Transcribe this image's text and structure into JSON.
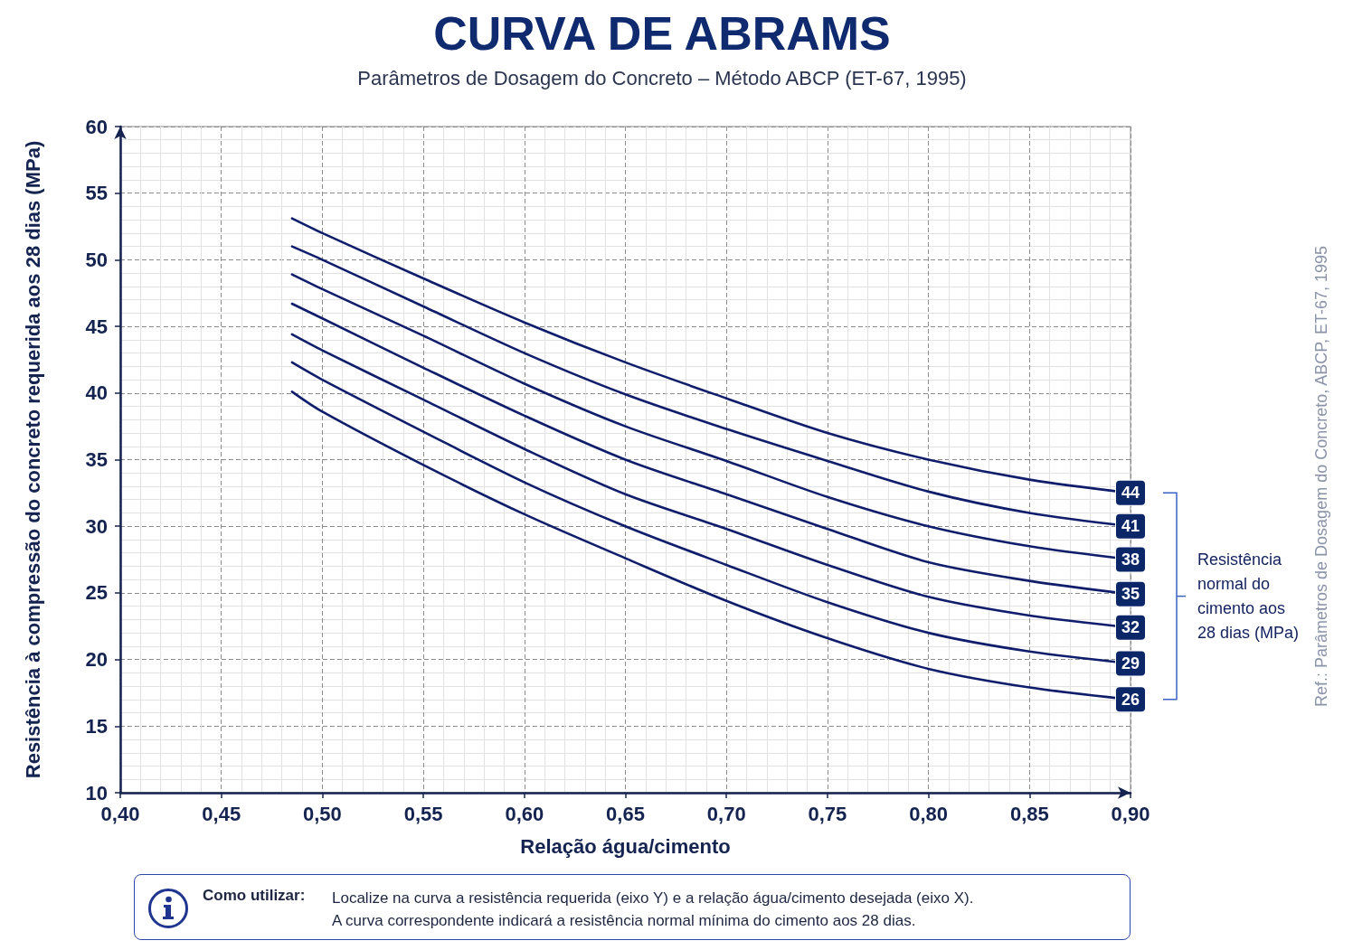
{
  "chart_data": {
    "type": "line",
    "title": "CURVA DE ABRAMS",
    "subtitle": "Parâmetros de Dosagem do Concreto – Método ABCP (ET-67, 1995)",
    "xlabel": "Relação água/cimento",
    "ylabel": "Resistência à compressão do concreto requerida aos 28 dias (MPa)",
    "legend_title": "Resistência normal do cimento aos 28 dias (MPa)",
    "x": [
      0.485,
      0.5,
      0.55,
      0.6,
      0.65,
      0.7,
      0.75,
      0.8,
      0.85,
      0.9
    ],
    "series": [
      {
        "name": "44",
        "color": "#0f1d6b",
        "values": [
          53.1,
          52.0,
          48.6,
          45.3,
          42.3,
          39.6,
          37.0,
          35.0,
          33.5,
          32.5
        ]
      },
      {
        "name": "41",
        "color": "#0f1d6b",
        "values": [
          51.0,
          50.0,
          46.5,
          43.0,
          39.9,
          37.3,
          34.9,
          32.6,
          31.0,
          30.0
        ]
      },
      {
        "name": "38",
        "color": "#0f1d6b",
        "values": [
          48.9,
          47.8,
          44.3,
          40.7,
          37.5,
          34.9,
          32.2,
          30.0,
          28.5,
          27.5
        ]
      },
      {
        "name": "35",
        "color": "#0f1d6b",
        "values": [
          46.7,
          45.6,
          41.9,
          38.3,
          35.0,
          32.4,
          29.8,
          27.3,
          25.9,
          24.9
        ]
      },
      {
        "name": "32",
        "color": "#0f1d6b",
        "values": [
          44.4,
          43.2,
          39.5,
          35.8,
          32.4,
          29.8,
          27.1,
          24.7,
          23.3,
          22.4
        ]
      },
      {
        "name": "29",
        "color": "#0f1d6b",
        "values": [
          42.3,
          41.0,
          37.1,
          33.3,
          30.0,
          27.1,
          24.3,
          22.0,
          20.6,
          19.7
        ]
      },
      {
        "name": "26",
        "color": "#0f1d6b",
        "values": [
          40.1,
          38.6,
          34.6,
          30.9,
          27.6,
          24.4,
          21.6,
          19.3,
          17.9,
          17.0
        ]
      }
    ],
    "xlim": [
      0.4,
      0.9
    ],
    "xticks": [
      {
        "value": 0.4,
        "label": "0,40"
      },
      {
        "value": 0.45,
        "label": "0,45"
      },
      {
        "value": 0.5,
        "label": "0,50"
      },
      {
        "value": 0.55,
        "label": "0,55"
      },
      {
        "value": 0.6,
        "label": "0,60"
      },
      {
        "value": 0.65,
        "label": "0,65"
      },
      {
        "value": 0.7,
        "label": "0,70"
      },
      {
        "value": 0.75,
        "label": "0,75"
      },
      {
        "value": 0.8,
        "label": "0,80"
      },
      {
        "value": 0.85,
        "label": "0,85"
      },
      {
        "value": 0.9,
        "label": "0,90"
      }
    ],
    "ylim": [
      10,
      60
    ],
    "yticks": [
      10,
      15,
      20,
      25,
      30,
      35,
      40,
      45,
      50,
      55,
      60
    ],
    "grid": true,
    "line_style": "solid",
    "annotations": [
      "Como utilizar:",
      "Localize na curva a resistência requerida (eixo Y) e a relação água/cimento desejada (eixo X).",
      "A curva correspondente indicará a resistência normal mínima do cimento aos 28 dias.",
      "Ref.: Parâmetros de Dosagem do Concreto, ABCP, ET-67, 1995"
    ]
  }
}
